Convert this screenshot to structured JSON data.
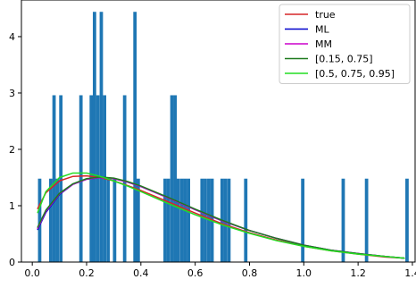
{
  "chart_data": {
    "type": "bar",
    "title": "",
    "xlabel": "",
    "ylabel": "",
    "xlim": [
      -0.04,
      1.41
    ],
    "ylim": [
      0,
      4.65
    ],
    "xticks": [
      0.0,
      0.2,
      0.4,
      0.6,
      0.8,
      1.0,
      1.2,
      1.4
    ],
    "yticks": [
      0,
      1,
      2,
      3,
      4
    ],
    "grid": false,
    "legend_position": "top-right",
    "bar_color": "#1f77b4",
    "histogram": {
      "bin_width": 0.0124,
      "bins": [
        {
          "x": 0.021,
          "density": 1.48
        },
        {
          "x": 0.062,
          "density": 1.48
        },
        {
          "x": 0.074,
          "density": 2.96
        },
        {
          "x": 0.086,
          "density": 1.48
        },
        {
          "x": 0.099,
          "density": 2.96
        },
        {
          "x": 0.173,
          "density": 2.96
        },
        {
          "x": 0.211,
          "density": 2.96
        },
        {
          "x": 0.223,
          "density": 4.44
        },
        {
          "x": 0.235,
          "density": 2.96
        },
        {
          "x": 0.248,
          "density": 4.44
        },
        {
          "x": 0.26,
          "density": 2.96
        },
        {
          "x": 0.273,
          "density": 1.48
        },
        {
          "x": 0.297,
          "density": 1.48
        },
        {
          "x": 0.334,
          "density": 2.96
        },
        {
          "x": 0.372,
          "density": 4.44
        },
        {
          "x": 0.384,
          "density": 1.48
        },
        {
          "x": 0.483,
          "density": 1.48
        },
        {
          "x": 0.495,
          "density": 1.48
        },
        {
          "x": 0.508,
          "density": 2.96
        },
        {
          "x": 0.52,
          "density": 2.96
        },
        {
          "x": 0.532,
          "density": 1.48
        },
        {
          "x": 0.545,
          "density": 1.48
        },
        {
          "x": 0.557,
          "density": 1.48
        },
        {
          "x": 0.569,
          "density": 1.48
        },
        {
          "x": 0.619,
          "density": 1.48
        },
        {
          "x": 0.631,
          "density": 1.48
        },
        {
          "x": 0.644,
          "density": 1.48
        },
        {
          "x": 0.656,
          "density": 1.48
        },
        {
          "x": 0.693,
          "density": 1.48
        },
        {
          "x": 0.705,
          "density": 1.48
        },
        {
          "x": 0.718,
          "density": 1.48
        },
        {
          "x": 0.78,
          "density": 1.48
        },
        {
          "x": 0.99,
          "density": 1.48
        },
        {
          "x": 1.139,
          "density": 1.48
        },
        {
          "x": 1.225,
          "density": 1.48
        },
        {
          "x": 1.374,
          "density": 1.48
        }
      ]
    },
    "series": [
      {
        "name": "true",
        "color": "#d62728",
        "x": [
          0.02,
          0.05,
          0.1,
          0.15,
          0.2,
          0.25,
          0.3,
          0.35,
          0.4,
          0.5,
          0.6,
          0.7,
          0.8,
          0.9,
          1.0,
          1.1,
          1.2,
          1.3,
          1.37
        ],
        "y": [
          0.95,
          1.23,
          1.44,
          1.52,
          1.53,
          1.5,
          1.44,
          1.36,
          1.27,
          1.07,
          0.87,
          0.68,
          0.52,
          0.39,
          0.28,
          0.2,
          0.14,
          0.09,
          0.07
        ]
      },
      {
        "name": "ML",
        "color": "#0000cc",
        "x": [
          0.02,
          0.05,
          0.1,
          0.15,
          0.2,
          0.25,
          0.3,
          0.35,
          0.4,
          0.5,
          0.6,
          0.7,
          0.8,
          0.9,
          1.0,
          1.1,
          1.2,
          1.3,
          1.37
        ],
        "y": [
          0.58,
          0.88,
          1.2,
          1.38,
          1.47,
          1.5,
          1.48,
          1.42,
          1.34,
          1.14,
          0.93,
          0.73,
          0.56,
          0.42,
          0.3,
          0.21,
          0.15,
          0.1,
          0.07
        ]
      },
      {
        "name": "MM",
        "color": "#cc00cc",
        "x": [
          0.02,
          0.05,
          0.1,
          0.15,
          0.2,
          0.25,
          0.3,
          0.35,
          0.4,
          0.5,
          0.6,
          0.7,
          0.8,
          0.9,
          1.0,
          1.1,
          1.2,
          1.3,
          1.37
        ],
        "y": [
          0.6,
          0.9,
          1.21,
          1.38,
          1.47,
          1.5,
          1.48,
          1.42,
          1.34,
          1.14,
          0.93,
          0.73,
          0.56,
          0.42,
          0.3,
          0.21,
          0.15,
          0.1,
          0.07
        ]
      },
      {
        "name": "[0.15, 0.75]",
        "color": "#1f7a1f",
        "x": [
          0.02,
          0.05,
          0.1,
          0.15,
          0.2,
          0.25,
          0.3,
          0.35,
          0.4,
          0.5,
          0.6,
          0.7,
          0.8,
          0.9,
          1.0,
          1.1,
          1.2,
          1.3,
          1.37
        ],
        "y": [
          0.62,
          0.92,
          1.22,
          1.39,
          1.48,
          1.51,
          1.49,
          1.43,
          1.35,
          1.15,
          0.94,
          0.74,
          0.56,
          0.42,
          0.3,
          0.21,
          0.15,
          0.1,
          0.07
        ]
      },
      {
        "name": "[0.5, 0.75, 0.95]",
        "color": "#22dd22",
        "x": [
          0.02,
          0.05,
          0.1,
          0.15,
          0.2,
          0.25,
          0.3,
          0.35,
          0.4,
          0.5,
          0.6,
          0.7,
          0.8,
          0.9,
          1.0,
          1.1,
          1.2,
          1.3,
          1.37
        ],
        "y": [
          0.88,
          1.25,
          1.5,
          1.58,
          1.58,
          1.52,
          1.44,
          1.35,
          1.25,
          1.04,
          0.84,
          0.66,
          0.51,
          0.38,
          0.28,
          0.2,
          0.14,
          0.1,
          0.07
        ]
      }
    ]
  }
}
